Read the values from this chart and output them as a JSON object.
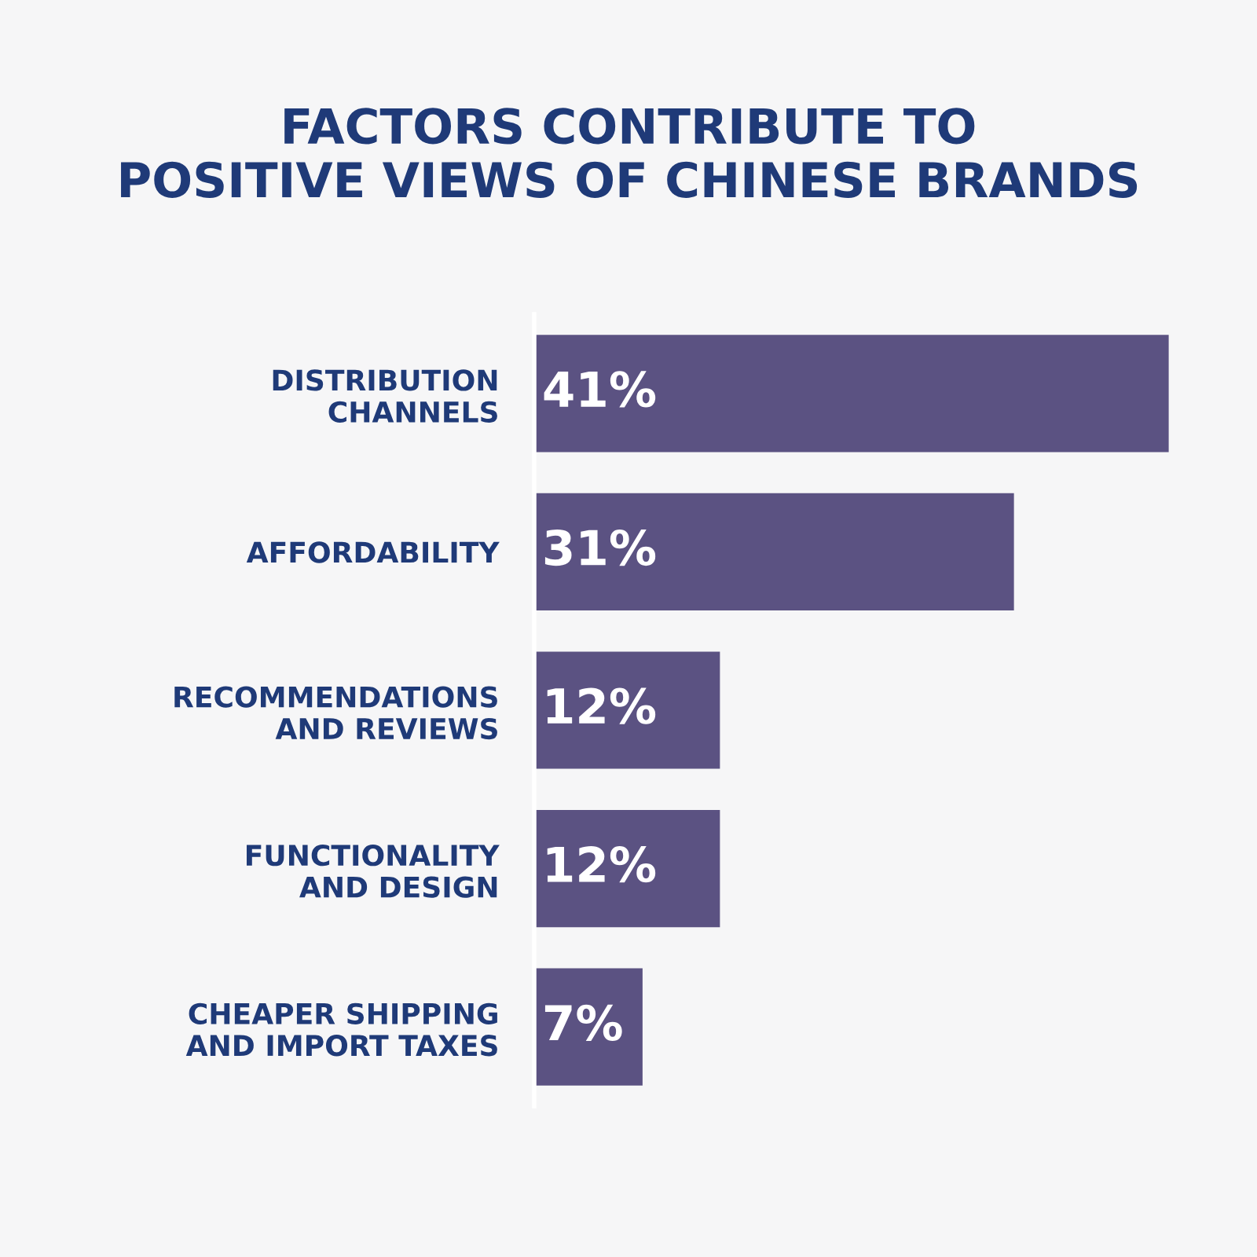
{
  "chart_data": {
    "type": "bar",
    "orientation": "horizontal",
    "title": "FACTORS CONTRIBUTE TO\nPOSITIVE VIEWS OF CHINESE BRANDS",
    "categories": [
      "DISTRIBUTION\nCHANNELS",
      "AFFORDABILITY",
      "RECOMMENDATIONS\nAND REVIEWS",
      "FUNCTIONALITY\nAND DESIGN",
      "CHEAPER SHIPPING\nAND IMPORT TAXES"
    ],
    "values": [
      41,
      31,
      12,
      12,
      7
    ],
    "value_labels": [
      "41%",
      "31%",
      "12%",
      "12%",
      "7%"
    ],
    "color": "#5b5282",
    "grid": false
  }
}
